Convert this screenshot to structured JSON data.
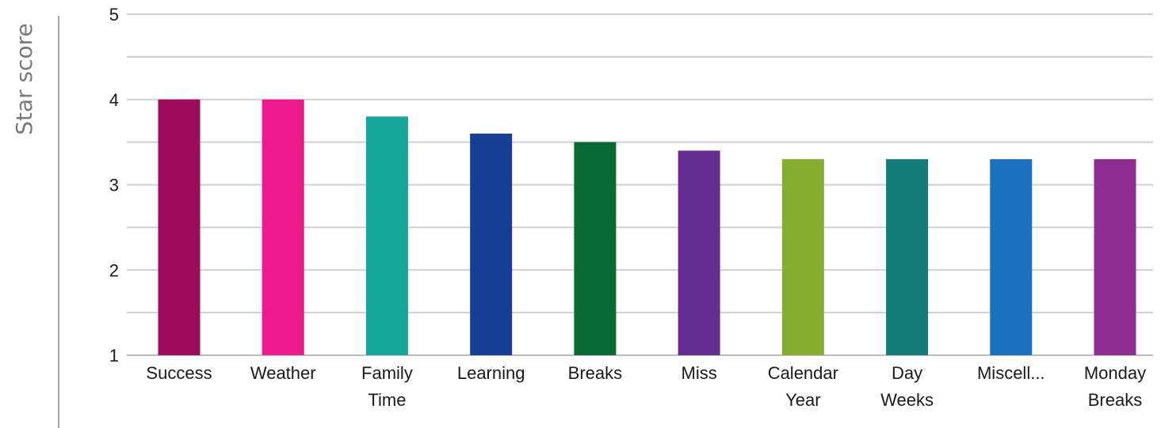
{
  "chart_data": {
    "type": "bar",
    "title": "",
    "xlabel": "",
    "ylabel": "Star score",
    "ylim": [
      1,
      5
    ],
    "yticks": [
      1,
      2,
      3,
      4,
      5
    ],
    "minor_gridlines": [
      1.5,
      2.5,
      3.5,
      4.5
    ],
    "grid": true,
    "legend": "none",
    "categories": [
      [
        "Success"
      ],
      [
        "Weather"
      ],
      [
        "Family",
        "Time"
      ],
      [
        "Learning"
      ],
      [
        "Breaks"
      ],
      [
        "Miss"
      ],
      [
        "Calendar",
        "Year"
      ],
      [
        "Day",
        "Weeks"
      ],
      [
        "Miscell..."
      ],
      [
        "Monday",
        "Breaks"
      ]
    ],
    "values": [
      4.0,
      4.0,
      3.8,
      3.6,
      3.5,
      3.4,
      3.3,
      3.3,
      3.3,
      3.3
    ],
    "colors": [
      "#9c0c5a",
      "#ec1a8c",
      "#17a69b",
      "#143f93",
      "#0a6832",
      "#652d91",
      "#86ad2f",
      "#127d78",
      "#1b71bd",
      "#8e2d8f"
    ]
  }
}
